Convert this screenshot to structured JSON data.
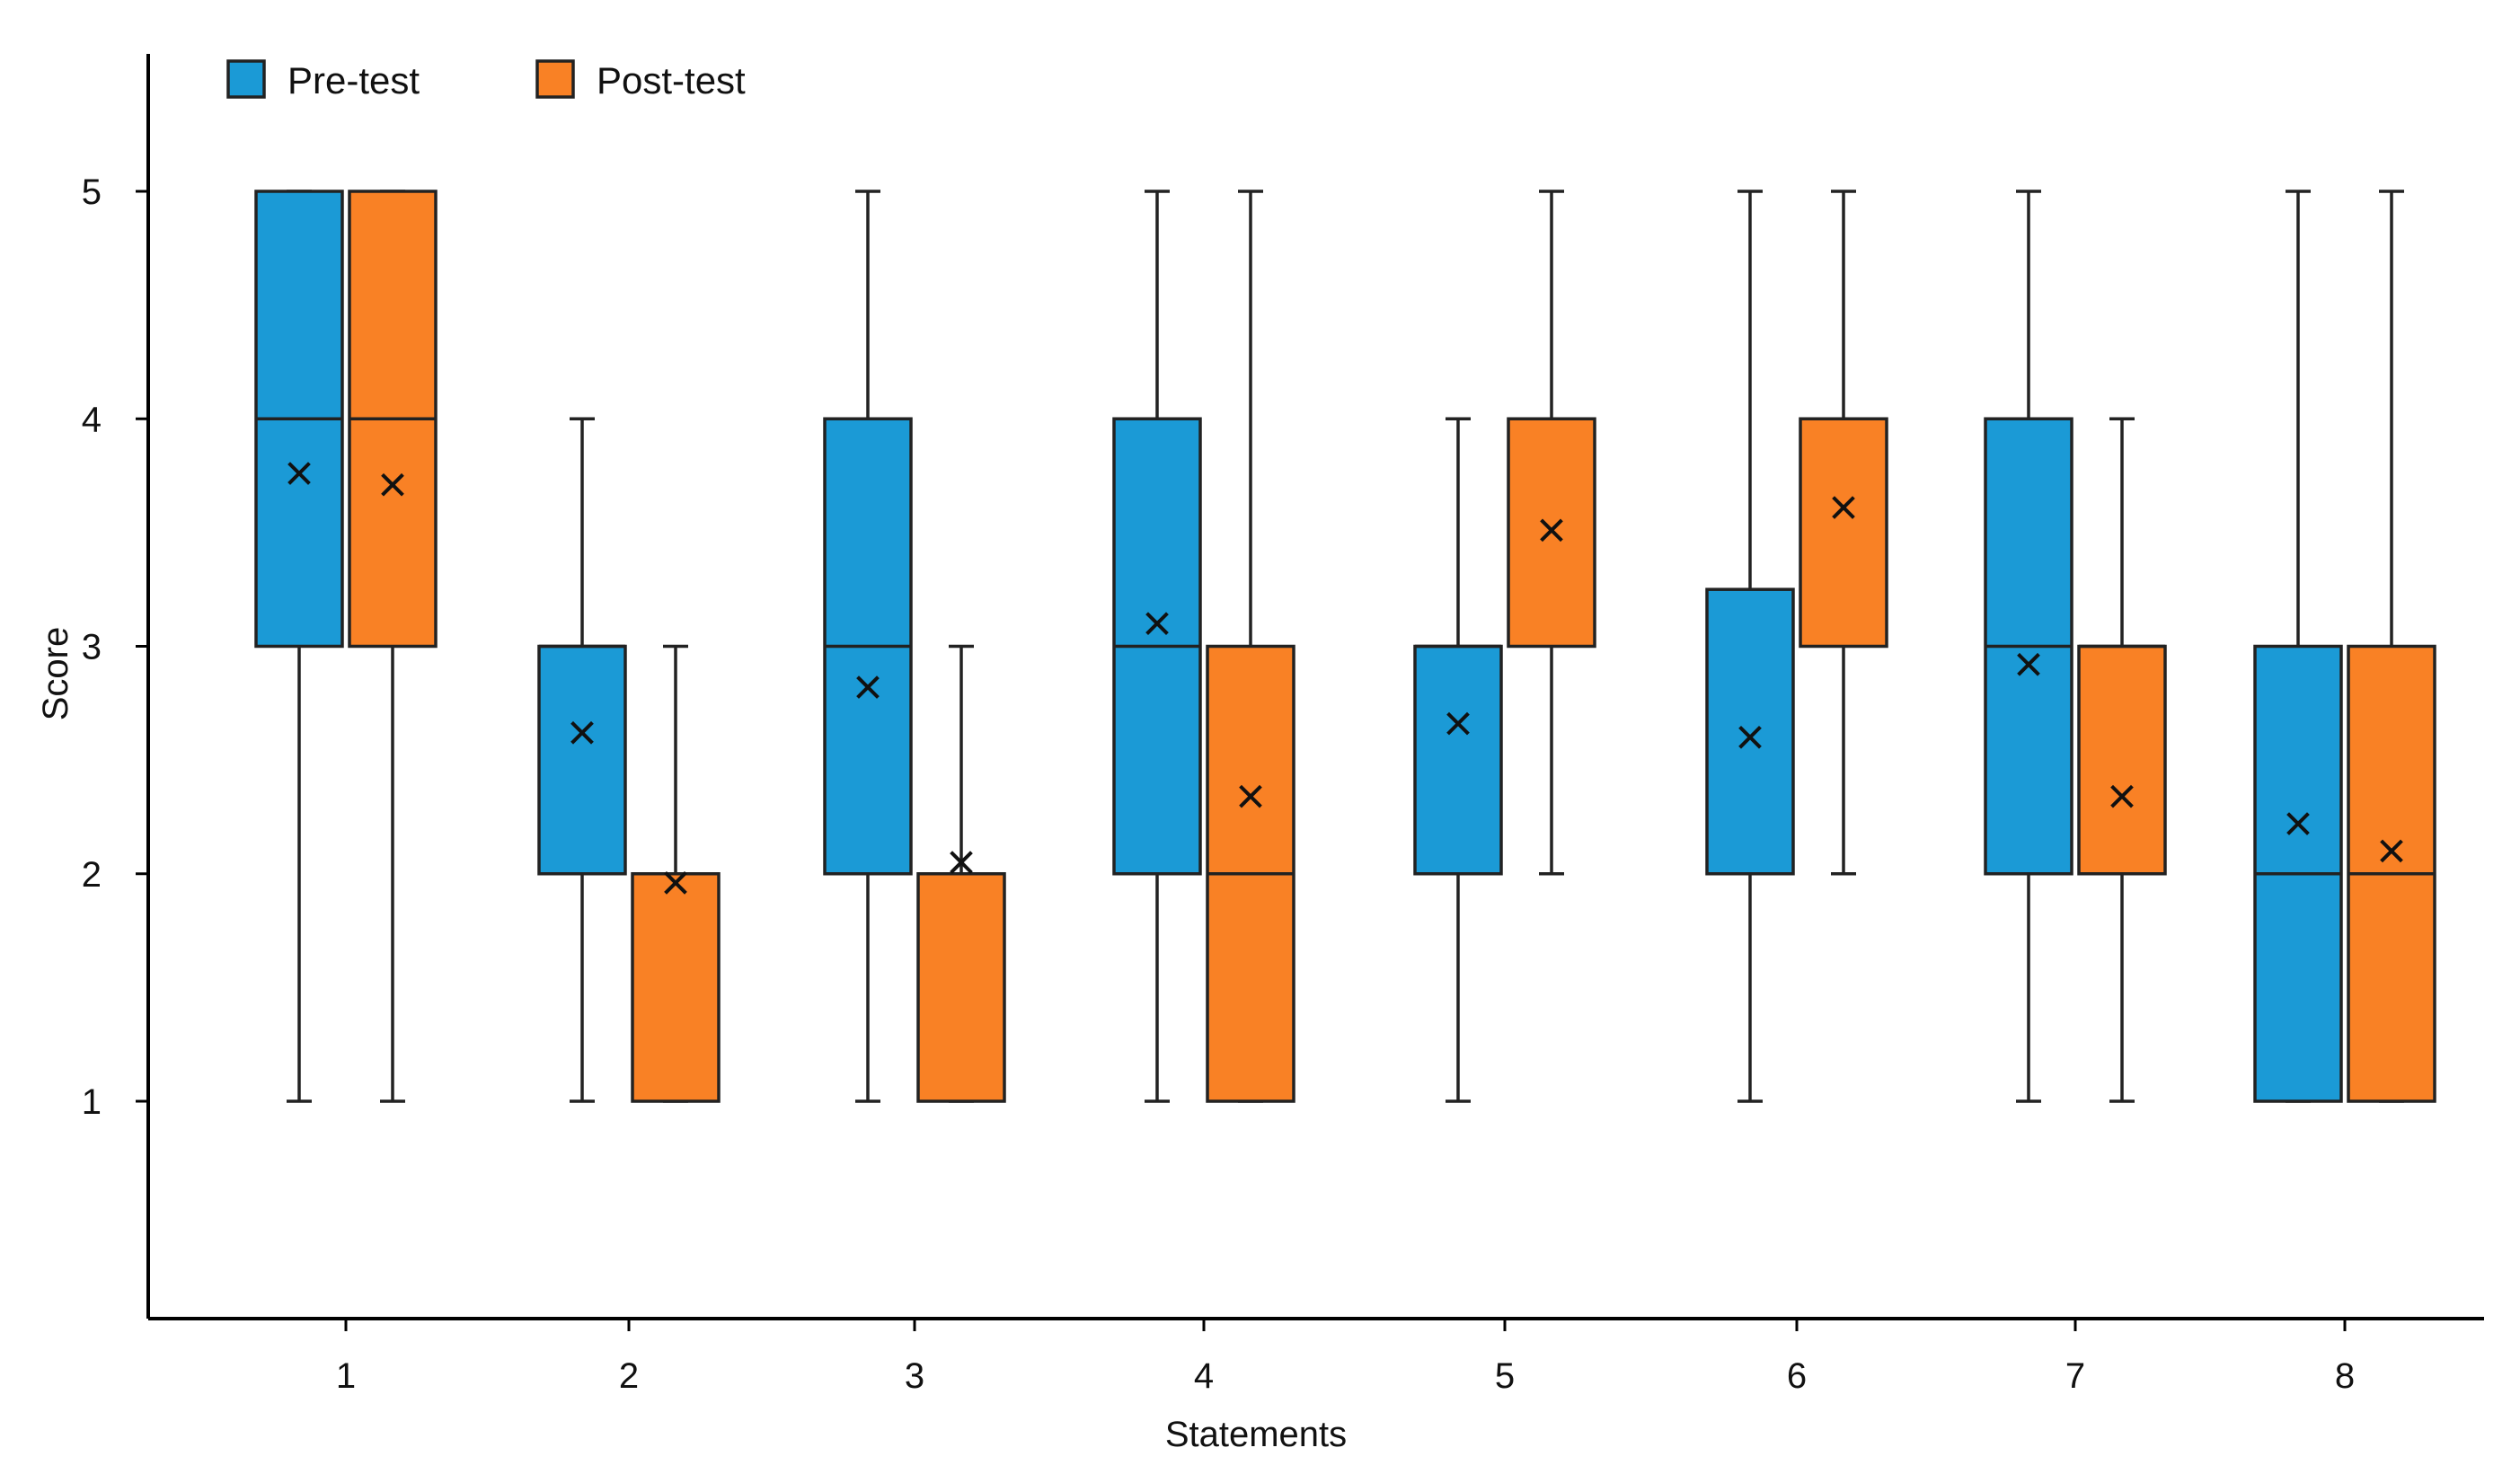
{
  "chart_data": {
    "type": "boxplot",
    "title": "",
    "xlabel": "Statements",
    "ylabel": "Score",
    "ylim": [
      0,
      5.6
    ],
    "yticks": [
      1,
      2,
      3,
      4,
      5
    ],
    "categories": [
      "1",
      "2",
      "3",
      "4",
      "5",
      "6",
      "7",
      "8"
    ],
    "legend_position": "top-left",
    "series": [
      {
        "name": "Pre-test",
        "color": "#1b9ad6",
        "boxes": [
          {
            "min": 1,
            "q1": 3,
            "median": 4,
            "q3": 5,
            "max": 5,
            "mean": 3.76
          },
          {
            "min": 1,
            "q1": 2,
            "median": 3,
            "q3": 3,
            "max": 4,
            "mean": 2.62
          },
          {
            "min": 1,
            "q1": 2,
            "median": 3,
            "q3": 4,
            "max": 5,
            "mean": 2.82
          },
          {
            "min": 1,
            "q1": 2,
            "median": 3,
            "q3": 4,
            "max": 5,
            "mean": 3.1
          },
          {
            "min": 1,
            "q1": 2,
            "median": 3,
            "q3": 3,
            "max": 4,
            "mean": 2.66
          },
          {
            "min": 1,
            "q1": 2,
            "median": 2,
            "q3": 3.25,
            "max": 5,
            "mean": 2.6
          },
          {
            "min": 1,
            "q1": 2,
            "median": 3,
            "q3": 4,
            "max": 5,
            "mean": 2.92
          },
          {
            "min": 1,
            "q1": 1,
            "median": 2,
            "q3": 3,
            "max": 5,
            "mean": 2.22
          }
        ]
      },
      {
        "name": "Post-test",
        "color": "#f98125",
        "boxes": [
          {
            "min": 1,
            "q1": 3,
            "median": 4,
            "q3": 5,
            "max": 5,
            "mean": 3.71
          },
          {
            "min": 1,
            "q1": 1,
            "median": 2,
            "q3": 2,
            "max": 3,
            "mean": 1.96
          },
          {
            "min": 1,
            "q1": 1,
            "median": 2,
            "q3": 2,
            "max": 3,
            "mean": 2.05
          },
          {
            "min": 1,
            "q1": 1,
            "median": 2,
            "q3": 3,
            "max": 5,
            "mean": 2.34
          },
          {
            "min": 2,
            "q1": 3,
            "median": 4,
            "q3": 4,
            "max": 5,
            "mean": 3.51
          },
          {
            "min": 2,
            "q1": 3,
            "median": 4,
            "q3": 4,
            "max": 5,
            "mean": 3.61
          },
          {
            "min": 1,
            "q1": 2,
            "median": 3,
            "q3": 3,
            "max": 4,
            "mean": 2.34
          },
          {
            "min": 1,
            "q1": 1,
            "median": 2,
            "q3": 3,
            "max": 5,
            "mean": 2.1
          }
        ]
      }
    ]
  }
}
